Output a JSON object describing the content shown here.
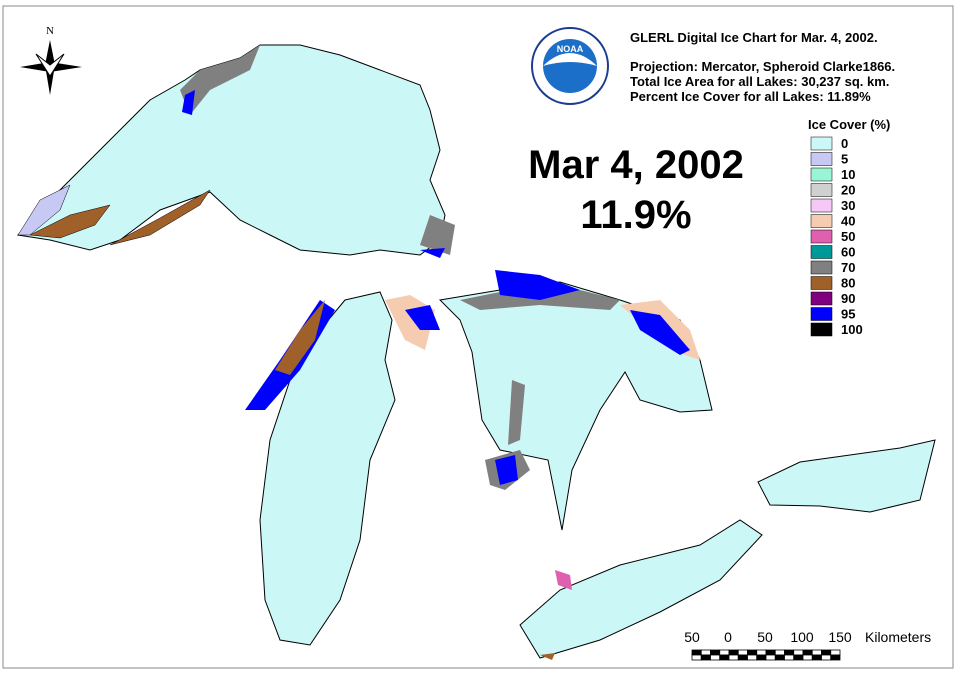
{
  "header": {
    "title": "GLERL Digital Ice Chart for Mar. 4, 2002.",
    "projection": "Projection:  Mercator, Spheroid Clarke1866.",
    "total_area": "Total Ice Area for all Lakes: 30,237 sq. km.",
    "percent": "Percent Ice Cover for all Lakes:  11.89%",
    "logo": "NOAA"
  },
  "compass": "N",
  "overlay": {
    "date": "Mar 4, 2002",
    "percent": "11.9%"
  },
  "legend": {
    "title": "Ice Cover (%)",
    "items": [
      {
        "label": "0",
        "color": "#ccf7f7"
      },
      {
        "label": "5",
        "color": "#c8c8f5"
      },
      {
        "label": "10",
        "color": "#99f5d6"
      },
      {
        "label": "20",
        "color": "#d0d0d0"
      },
      {
        "label": "30",
        "color": "#f5c8f5"
      },
      {
        "label": "40",
        "color": "#f5ccb0"
      },
      {
        "label": "50",
        "color": "#e060b0"
      },
      {
        "label": "60",
        "color": "#009999"
      },
      {
        "label": "70",
        "color": "#808080"
      },
      {
        "label": "80",
        "color": "#a0602a"
      },
      {
        "label": "90",
        "color": "#800080"
      },
      {
        "label": "95",
        "color": "#0000ff"
      },
      {
        "label": "100",
        "color": "#000000"
      }
    ]
  },
  "scale_bar": {
    "labels": [
      "50",
      "0",
      "50",
      "100",
      "150"
    ],
    "unit": "Kilometers"
  }
}
